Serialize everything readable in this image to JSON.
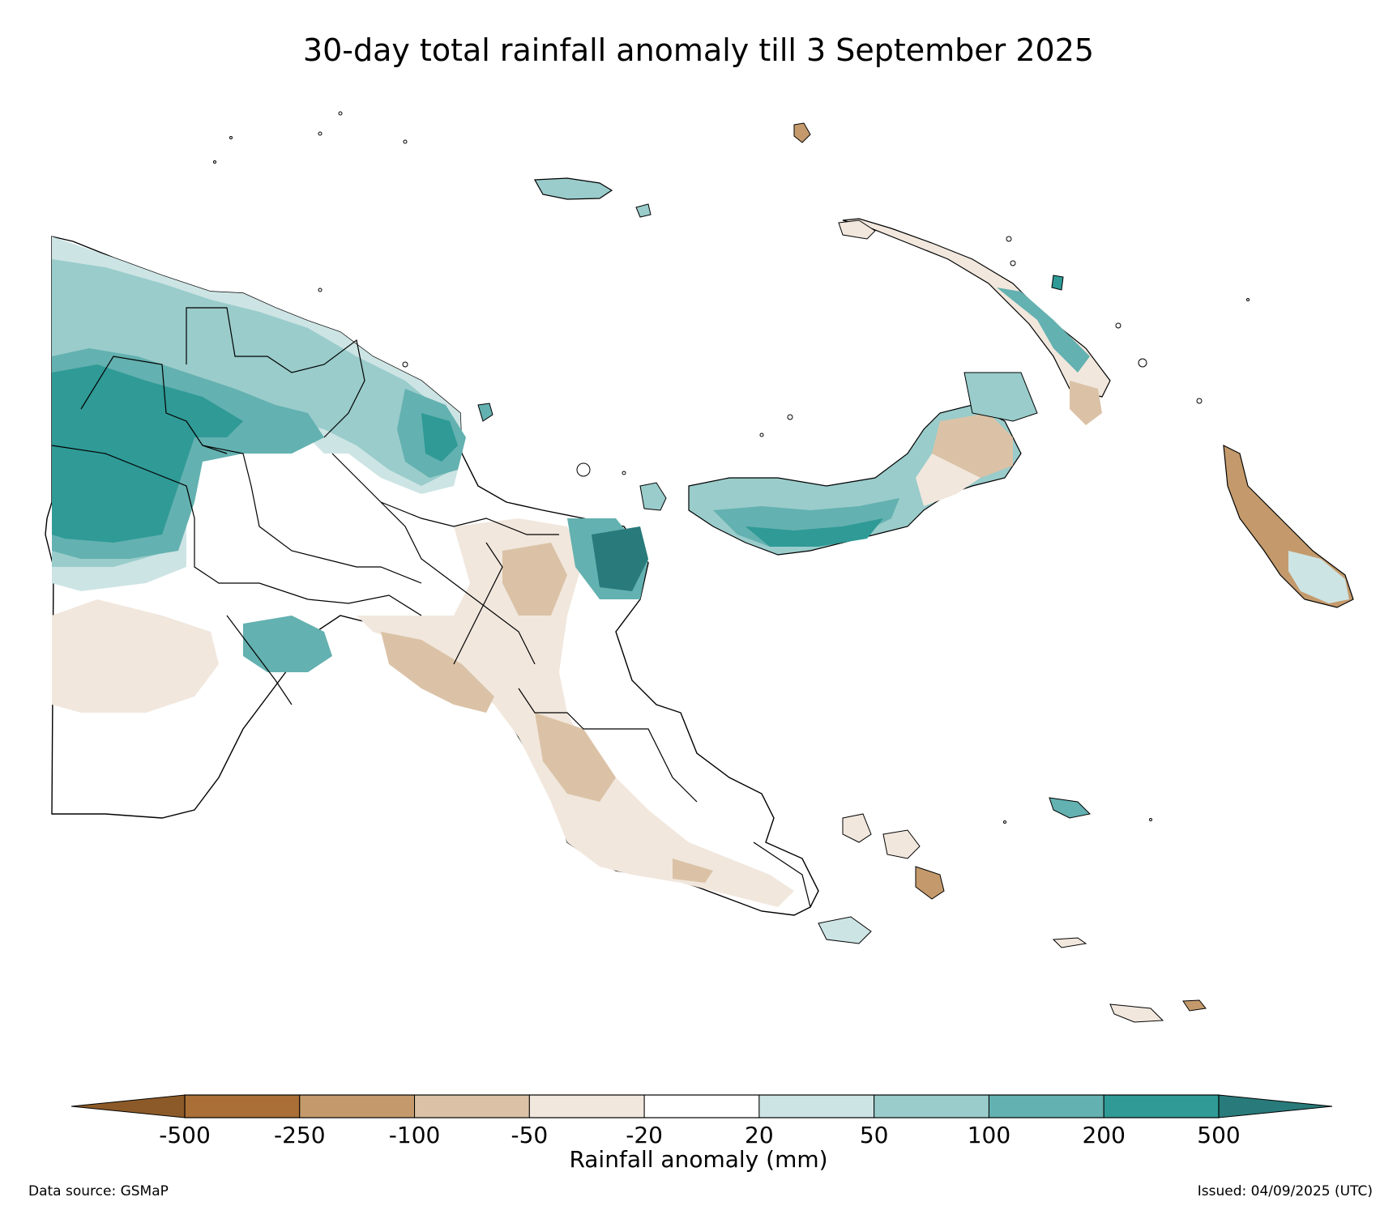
{
  "figure": {
    "title": "30-day total rainfall anomaly till 3 September 2025",
    "data_source": "Data source: GSMaP",
    "issued": "Issued: 04/09/2025 (UTC)"
  },
  "colorbar": {
    "label": "Rainfall anomaly (mm)",
    "ticks": [
      "-500",
      "-250",
      "-100",
      "-50",
      "-20",
      "20",
      "50",
      "100",
      "200",
      "500"
    ],
    "colors": [
      "#a96f36",
      "#c49a6c",
      "#dbc2a6",
      "#f1e7dd",
      "#ffffff",
      "#cde4e4",
      "#99cccb",
      "#63b1b0",
      "#2f9a96"
    ],
    "extend_low_color": "#8c5a28",
    "extend_high_color": "#287b7a"
  },
  "legend_palette": {
    "outline": "#000000",
    "province_border": "#000000",
    "contour_line": "#888888"
  }
}
